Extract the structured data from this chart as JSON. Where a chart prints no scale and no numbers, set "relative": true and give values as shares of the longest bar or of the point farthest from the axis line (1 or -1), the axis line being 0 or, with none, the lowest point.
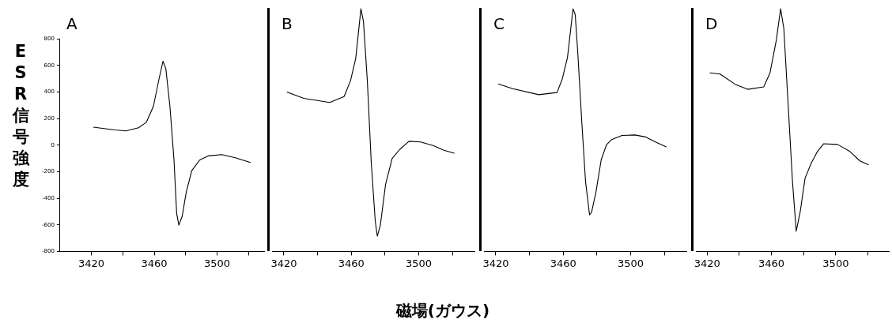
{
  "chart_data": [
    {
      "type": "line",
      "title": "A",
      "ylabel": "ESR信号強度",
      "xlim": [
        3400,
        3530
      ],
      "xticks": [
        3420,
        {
          "value": 3440,
          "label": null
        },
        3460,
        {
          "value": 3480,
          "label": null
        },
        3500,
        {
          "value": 3520,
          "label": null
        }
      ],
      "ylim": [
        -800,
        800
      ],
      "yticks": [
        -800,
        -600,
        -400,
        -200,
        0,
        200,
        400,
        600,
        800
      ],
      "grid": false,
      "legend": false,
      "marker": "none",
      "line_style": "solid",
      "series": [
        {
          "color": "#000000",
          "x": [
            3421.2,
            3435,
            3442,
            3450,
            3455,
            3459.5,
            3463,
            3465.6,
            3467.4,
            3470,
            3472.6,
            3474.3,
            3475.7,
            3477.8,
            3480.4,
            3483.9,
            3489,
            3494.3,
            3503,
            3511.7,
            3521.3
          ],
          "values": [
            135,
            115,
            107,
            131,
            172,
            293,
            495,
            632,
            576,
            293,
            -111,
            -515,
            -602,
            -535,
            -354,
            -192,
            -111,
            -81,
            -71,
            -95,
            -131
          ]
        }
      ]
    },
    {
      "type": "line",
      "title": "B",
      "xlabel": "磁場(ガウス)",
      "relative": true,
      "xlim": [
        3413,
        3533
      ],
      "xticks": [
        3420,
        {
          "value": 3440,
          "label": null
        },
        3460,
        {
          "value": 3480,
          "label": null
        },
        3500,
        {
          "value": 3520,
          "label": null
        }
      ],
      "grid": false,
      "legend": false,
      "marker": "none",
      "line_style": "solid",
      "series": [
        {
          "color": "#000000",
          "x": [
            3421.8,
            3431.8,
            3447.2,
            3455.7,
            3459.5,
            3462.6,
            3465.7,
            3467.2,
            3469.5,
            3471.8,
            3474.2,
            3475.4,
            3477.2,
            3480.3,
            3484.2,
            3488.8,
            3494.2,
            3501.1,
            3508.8,
            3514.9,
            3521.1
          ],
          "values": [
            0.657,
            0.631,
            0.614,
            0.638,
            0.703,
            0.795,
            1,
            0.947,
            0.703,
            0.368,
            0.124,
            0.063,
            0.108,
            0.276,
            0.383,
            0.421,
            0.454,
            0.451,
            0.436,
            0.417,
            0.405
          ]
        }
      ]
    },
    {
      "type": "line",
      "title": "C",
      "relative": true,
      "xlim": [
        3413,
        3533
      ],
      "xticks": [
        3420,
        {
          "value": 3440,
          "label": null
        },
        3460,
        {
          "value": 3480,
          "label": null
        },
        3500,
        {
          "value": 3520,
          "label": null
        }
      ],
      "grid": false,
      "legend": false,
      "marker": "none",
      "line_style": "solid",
      "series": [
        {
          "color": "#000000",
          "x": [
            3421.5,
            3430,
            3445.5,
            3456.3,
            3459.4,
            3462.5,
            3465.8,
            3467.1,
            3468.6,
            3470.9,
            3473.2,
            3475.6,
            3476.8,
            3479.4,
            3482.5,
            3485.6,
            3488.7,
            3494.8,
            3502.6,
            3508.7,
            3514.9,
            3521.1
          ],
          "values": [
            0.69,
            0.671,
            0.646,
            0.655,
            0.71,
            0.799,
            1,
            0.976,
            0.821,
            0.544,
            0.289,
            0.151,
            0.162,
            0.245,
            0.378,
            0.439,
            0.461,
            0.478,
            0.48,
            0.472,
            0.45,
            0.431
          ]
        }
      ]
    },
    {
      "type": "line",
      "title": "D",
      "relative": true,
      "xlim": [
        3413,
        3533
      ],
      "xticks": [
        3420,
        {
          "value": 3440,
          "label": null
        },
        3460,
        {
          "value": 3480,
          "label": null
        },
        3500,
        {
          "value": 3520,
          "label": null
        }
      ],
      "grid": false,
      "legend": false,
      "marker": "none",
      "line_style": "solid",
      "series": [
        {
          "color": "#000000",
          "x": [
            3421.6,
            3428,
            3437.4,
            3445.2,
            3455.2,
            3459.1,
            3463,
            3465.7,
            3467.7,
            3470,
            3473.1,
            3475.4,
            3477.8,
            3480.9,
            3484.8,
            3488.6,
            3492.5,
            3501.1,
            3508.8,
            3515,
            3520.5
          ],
          "values": [
            0.736,
            0.731,
            0.689,
            0.668,
            0.678,
            0.736,
            0.87,
            1,
            0.918,
            0.649,
            0.286,
            0.084,
            0.16,
            0.302,
            0.365,
            0.412,
            0.444,
            0.441,
            0.412,
            0.373,
            0.357
          ]
        }
      ]
    }
  ]
}
